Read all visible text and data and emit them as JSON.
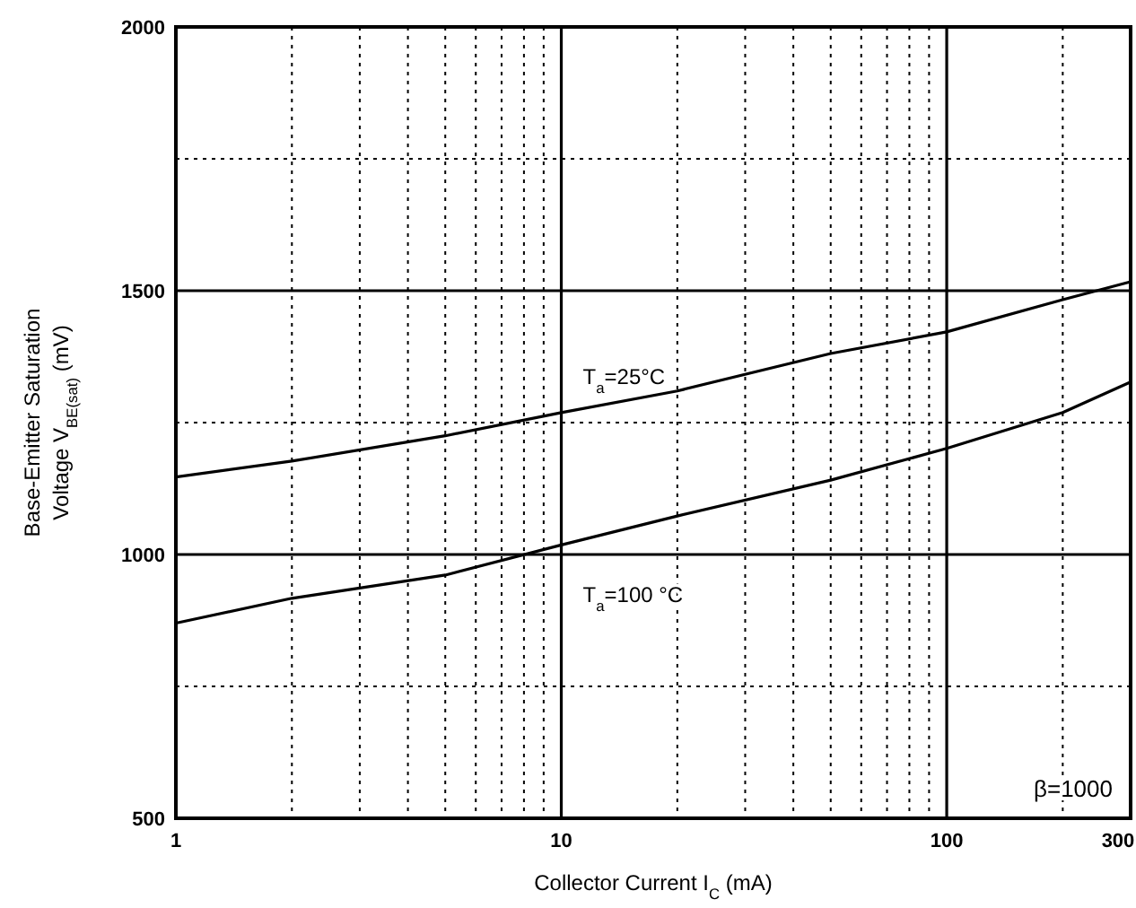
{
  "chart_data": {
    "type": "line",
    "xlabel": "Collector Current  I$_{C}$ (mA)",
    "ylabel": "Base-Emitter Saturation\nVoltage  V$_{BE(sat)}$  (mV)",
    "log": "x",
    "grid": true,
    "line_style": "solid",
    "marker": "none",
    "xlim": [
      1,
      300
    ],
    "ylim": [
      500,
      2000
    ],
    "xticks": [
      1,
      {
        "value": 2,
        "label": null
      },
      {
        "value": 3,
        "label": null
      },
      {
        "value": 4,
        "label": null
      },
      {
        "value": 5,
        "label": null
      },
      {
        "value": 6,
        "label": null
      },
      {
        "value": 7,
        "label": null
      },
      {
        "value": 8,
        "label": null
      },
      {
        "value": 9,
        "label": null
      },
      10,
      {
        "value": 20,
        "label": null
      },
      {
        "value": 30,
        "label": null
      },
      {
        "value": 40,
        "label": null
      },
      {
        "value": 50,
        "label": null
      },
      {
        "value": 60,
        "label": null
      },
      {
        "value": 70,
        "label": null
      },
      {
        "value": 80,
        "label": null
      },
      {
        "value": 90,
        "label": null
      },
      100,
      {
        "value": 200,
        "label": null
      },
      300
    ],
    "yticks": [
      500,
      {
        "value": 750,
        "label": null
      },
      1000,
      {
        "value": 1250,
        "label": null
      },
      1500,
      {
        "value": 1750,
        "label": null
      },
      2000
    ],
    "x": [
      1,
      2,
      5,
      10,
      20,
      50,
      100,
      200,
      300
    ],
    "series": [
      {
        "name": "T$_{a}$=25°C",
        "color": "#000000",
        "values": [
          1147,
          1177,
          1225,
          1269,
          1310,
          1381,
          1422,
          1483,
          1517
        ]
      },
      {
        "name": "T$_{a}$=100 °C",
        "color": "#000000",
        "values": [
          870,
          917,
          961,
          1018,
          1073,
          1141,
          1201,
          1269,
          1327
        ]
      }
    ],
    "annotations": [
      "β=1000"
    ]
  }
}
